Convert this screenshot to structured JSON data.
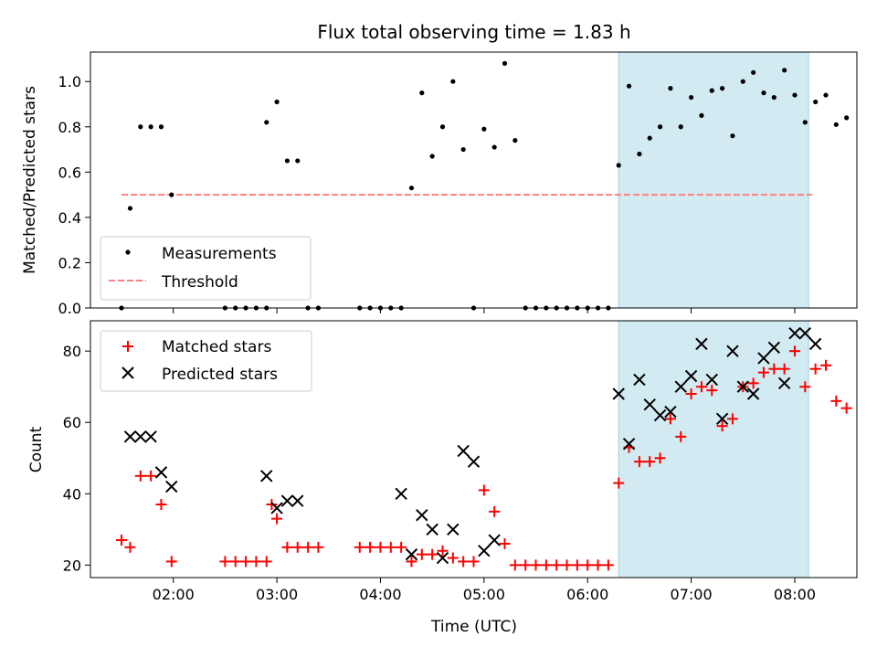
{
  "chart_data": [
    {
      "type": "scatter",
      "title": "Flux total observing time = 1.83 h",
      "ylabel": "Matched/Predicted stars",
      "xlabel": "",
      "ylim": [
        0,
        1.13
      ],
      "xlim": [
        "01:12",
        "08:36"
      ],
      "x_ticks": [
        "02:00",
        "03:00",
        "04:00",
        "05:00",
        "06:00",
        "07:00",
        "08:00"
      ],
      "y_ticks": [
        "0.0",
        "0.2",
        "0.4",
        "0.6",
        "0.8",
        "1.0"
      ],
      "highlight_span": [
        "06:18",
        "08:08"
      ],
      "legend_position": "lower-left",
      "threshold": {
        "name": "Threshold",
        "value": 0.5,
        "x_range": [
          "01:30",
          "08:10"
        ],
        "color": "#ff7f7f"
      },
      "series": [
        {
          "name": "Measurements",
          "color": "#000000",
          "x": [
            "01:30",
            "01:35",
            "01:41",
            "01:47",
            "01:53",
            "01:59",
            "02:30",
            "02:36",
            "02:42",
            "02:48",
            "02:54",
            "02:54",
            "03:00",
            "03:06",
            "03:12",
            "03:18",
            "03:24",
            "03:48",
            "03:54",
            "04:00",
            "04:06",
            "04:12",
            "04:18",
            "04:24",
            "04:30",
            "04:36",
            "04:42",
            "04:48",
            "04:54",
            "05:00",
            "05:06",
            "05:12",
            "05:18",
            "05:24",
            "05:30",
            "05:36",
            "05:42",
            "05:48",
            "05:54",
            "06:00",
            "06:06",
            "06:12",
            "06:18",
            "06:24",
            "06:30",
            "06:36",
            "06:42",
            "06:48",
            "06:54",
            "07:00",
            "07:06",
            "07:12",
            "07:18",
            "07:24",
            "07:30",
            "07:36",
            "07:42",
            "07:48",
            "07:54",
            "08:00",
            "08:06",
            "08:12",
            "08:18",
            "08:24",
            "08:30"
          ],
          "y": [
            0.0,
            0.44,
            0.8,
            0.8,
            0.8,
            0.5,
            0.0,
            0.0,
            0.0,
            0.0,
            0.0,
            0.82,
            0.91,
            0.65,
            0.65,
            0.0,
            0.0,
            0.0,
            0.0,
            0.0,
            0.0,
            0.0,
            0.53,
            0.95,
            0.67,
            0.8,
            1.0,
            0.7,
            0.0,
            0.79,
            0.71,
            1.08,
            0.74,
            0.0,
            0.0,
            0.0,
            0.0,
            0.0,
            0.0,
            0.0,
            0.0,
            0.0,
            0.63,
            0.98,
            0.68,
            0.75,
            0.8,
            0.97,
            0.8,
            0.93,
            0.85,
            0.96,
            0.97,
            0.76,
            1.0,
            1.04,
            0.95,
            0.93,
            1.05,
            0.94,
            0.82,
            0.91,
            0.94,
            0.81,
            0.84
          ]
        }
      ]
    },
    {
      "type": "scatter",
      "title": "",
      "ylabel": "Count",
      "xlabel": "Time (UTC)",
      "ylim": [
        16.5,
        88.5
      ],
      "xlim": [
        "01:12",
        "08:36"
      ],
      "x_ticks": [
        "02:00",
        "03:00",
        "04:00",
        "05:00",
        "06:00",
        "07:00",
        "08:00"
      ],
      "y_ticks": [
        "20",
        "40",
        "60",
        "80"
      ],
      "highlight_span": [
        "06:18",
        "08:08"
      ],
      "legend_position": "upper-left",
      "series": [
        {
          "name": "Matched stars",
          "color": "#ff0000",
          "x": [
            "01:30",
            "01:35",
            "01:41",
            "01:47",
            "01:53",
            "01:59",
            "02:30",
            "02:36",
            "02:42",
            "02:48",
            "02:54",
            "02:57",
            "03:00",
            "03:06",
            "03:12",
            "03:18",
            "03:24",
            "03:48",
            "03:54",
            "04:00",
            "04:06",
            "04:12",
            "04:18",
            "04:24",
            "04:30",
            "04:36",
            "04:42",
            "04:48",
            "04:54",
            "05:00",
            "05:06",
            "05:12",
            "05:18",
            "05:24",
            "05:30",
            "05:36",
            "05:42",
            "05:48",
            "05:54",
            "06:00",
            "06:06",
            "06:12",
            "06:18",
            "06:24",
            "06:30",
            "06:36",
            "06:42",
            "06:48",
            "06:54",
            "07:00",
            "07:06",
            "07:12",
            "07:18",
            "07:24",
            "07:30",
            "07:36",
            "07:42",
            "07:48",
            "07:54",
            "08:00",
            "08:06",
            "08:12",
            "08:18",
            "08:24",
            "08:30"
          ],
          "y": [
            27,
            25,
            45,
            45,
            37,
            21,
            21,
            21,
            21,
            21,
            21,
            37,
            33,
            25,
            25,
            25,
            25,
            25,
            25,
            25,
            25,
            25,
            21,
            23,
            23,
            24,
            22,
            21,
            21,
            41,
            35,
            26,
            20,
            20,
            20,
            20,
            20,
            20,
            20,
            20,
            20,
            20,
            43,
            53,
            49,
            49,
            50,
            61,
            56,
            68,
            70,
            69,
            59,
            61,
            70,
            71,
            74,
            75,
            75,
            80,
            70,
            75,
            76,
            66,
            64
          ]
        },
        {
          "name": "Predicted stars",
          "color": "#000000",
          "x": [
            "01:35",
            "01:41",
            "01:47",
            "01:53",
            "01:59",
            "02:54",
            "03:00",
            "03:06",
            "03:12",
            "04:12",
            "04:18",
            "04:24",
            "04:30",
            "04:36",
            "04:42",
            "04:48",
            "04:54",
            "05:00",
            "05:06",
            "06:18",
            "06:24",
            "06:30",
            "06:36",
            "06:42",
            "06:48",
            "06:54",
            "07:00",
            "07:06",
            "07:12",
            "07:18",
            "07:24",
            "07:30",
            "07:36",
            "07:42",
            "07:48",
            "07:54",
            "08:00",
            "08:06",
            "08:12"
          ],
          "y": [
            56,
            56,
            56,
            46,
            42,
            45,
            36,
            38,
            38,
            40,
            23,
            34,
            30,
            22,
            30,
            52,
            49,
            24,
            27,
            68,
            54,
            72,
            65,
            62,
            63,
            70,
            73,
            82,
            72,
            61,
            80,
            70,
            68,
            78,
            81,
            71,
            85,
            85,
            82
          ]
        }
      ]
    }
  ]
}
